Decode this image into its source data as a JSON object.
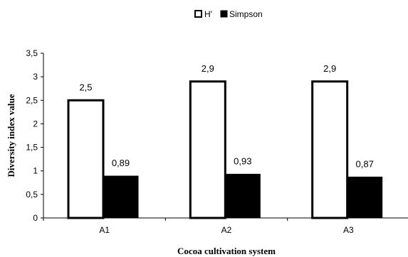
{
  "chart_data": {
    "type": "bar",
    "categories": [
      "A1",
      "A2",
      "A3"
    ],
    "series": [
      {
        "name": "H'",
        "values": [
          2.5,
          2.9,
          2.9
        ],
        "labels": [
          "2,5",
          "2,9",
          "2,9"
        ],
        "fill": "#ffffff"
      },
      {
        "name": "Simpson",
        "values": [
          0.89,
          0.93,
          0.87
        ],
        "labels": [
          "0,89",
          "0,93",
          "0,87"
        ],
        "fill": "#000000"
      }
    ],
    "xlabel": "Cocoa cultivation system",
    "ylabel": "Diversity index value",
    "ylim": [
      0,
      3.5
    ],
    "yticks": [
      0,
      0.5,
      1,
      1.5,
      2,
      2.5,
      3,
      3.5
    ],
    "ytick_labels": [
      "0",
      "0,5",
      "1",
      "1,5",
      "2",
      "2,5",
      "3",
      "3,5"
    ],
    "grid": false,
    "legend_position": "top-center"
  }
}
